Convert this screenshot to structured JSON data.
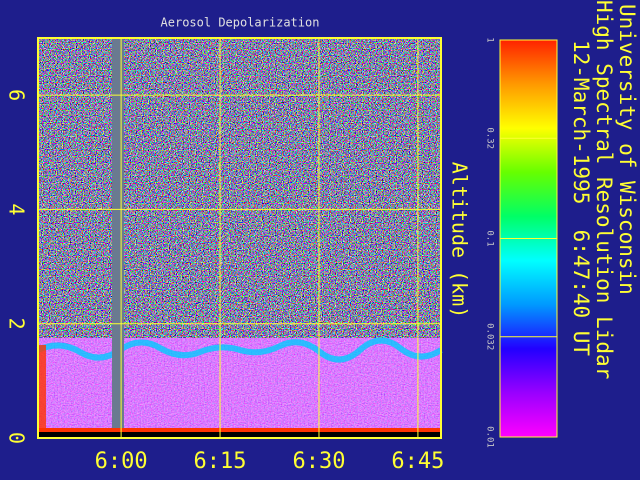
{
  "chart_data": {
    "type": "heatmap",
    "title": "Aerosol Depolarization",
    "y_label": "Altitude (km)",
    "xlim": [
      347.4,
      408.5
    ],
    "xticks": [
      {
        "value": 360,
        "label": "6:00"
      },
      {
        "value": 375,
        "label": "6:15"
      },
      {
        "value": 390,
        "label": "6:30"
      },
      {
        "value": 405,
        "label": "6:45"
      }
    ],
    "ylim": [
      0,
      7
    ],
    "yticks": [
      0,
      2,
      4,
      6
    ],
    "grid": true,
    "colorbar": {
      "scale": "log",
      "lim": [
        0.01,
        1
      ],
      "ticks": [
        0.01,
        0.032,
        0.1,
        0.32,
        1
      ],
      "colors": [
        "#ff00ff",
        "#9900ff",
        "#2200ff",
        "#0099ff",
        "#00ffff",
        "#00ff66",
        "#66ff00",
        "#ffff00",
        "#ff9900",
        "#ff2200"
      ]
    },
    "annotations": [
      "University of Wisconsin",
      "High Spectral Resolution Lidar",
      "12-March-1995  6:47:40 UT"
    ]
  }
}
